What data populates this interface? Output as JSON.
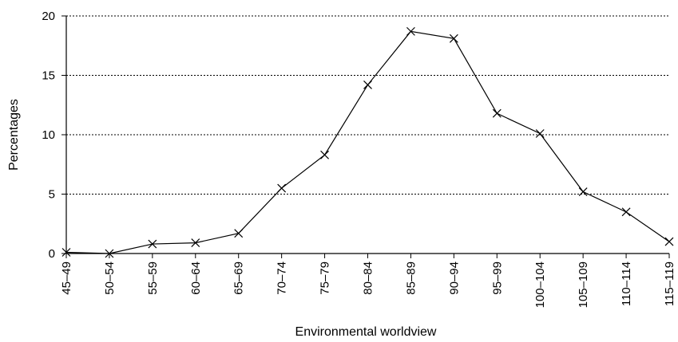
{
  "chart_data": {
    "type": "line",
    "title": "",
    "xlabel": "Environmental worldview",
    "ylabel": "Percentages",
    "ylim": [
      0,
      20
    ],
    "yticks": [
      "0",
      "5",
      "10",
      "15",
      "20"
    ],
    "grid": "horizontal dotted",
    "marker": "x",
    "categories": [
      "45–49",
      "50–54",
      "55–59",
      "60–64",
      "65–69",
      "70–74",
      "75–79",
      "80–84",
      "85–89",
      "90–94",
      "95–99",
      "100–104",
      "105–109",
      "110–114",
      "115–119"
    ],
    "values": [
      0.1,
      0.0,
      0.8,
      0.9,
      1.7,
      5.5,
      8.3,
      14.2,
      18.7,
      18.1,
      11.8,
      10.1,
      5.2,
      3.5,
      1.0
    ]
  }
}
